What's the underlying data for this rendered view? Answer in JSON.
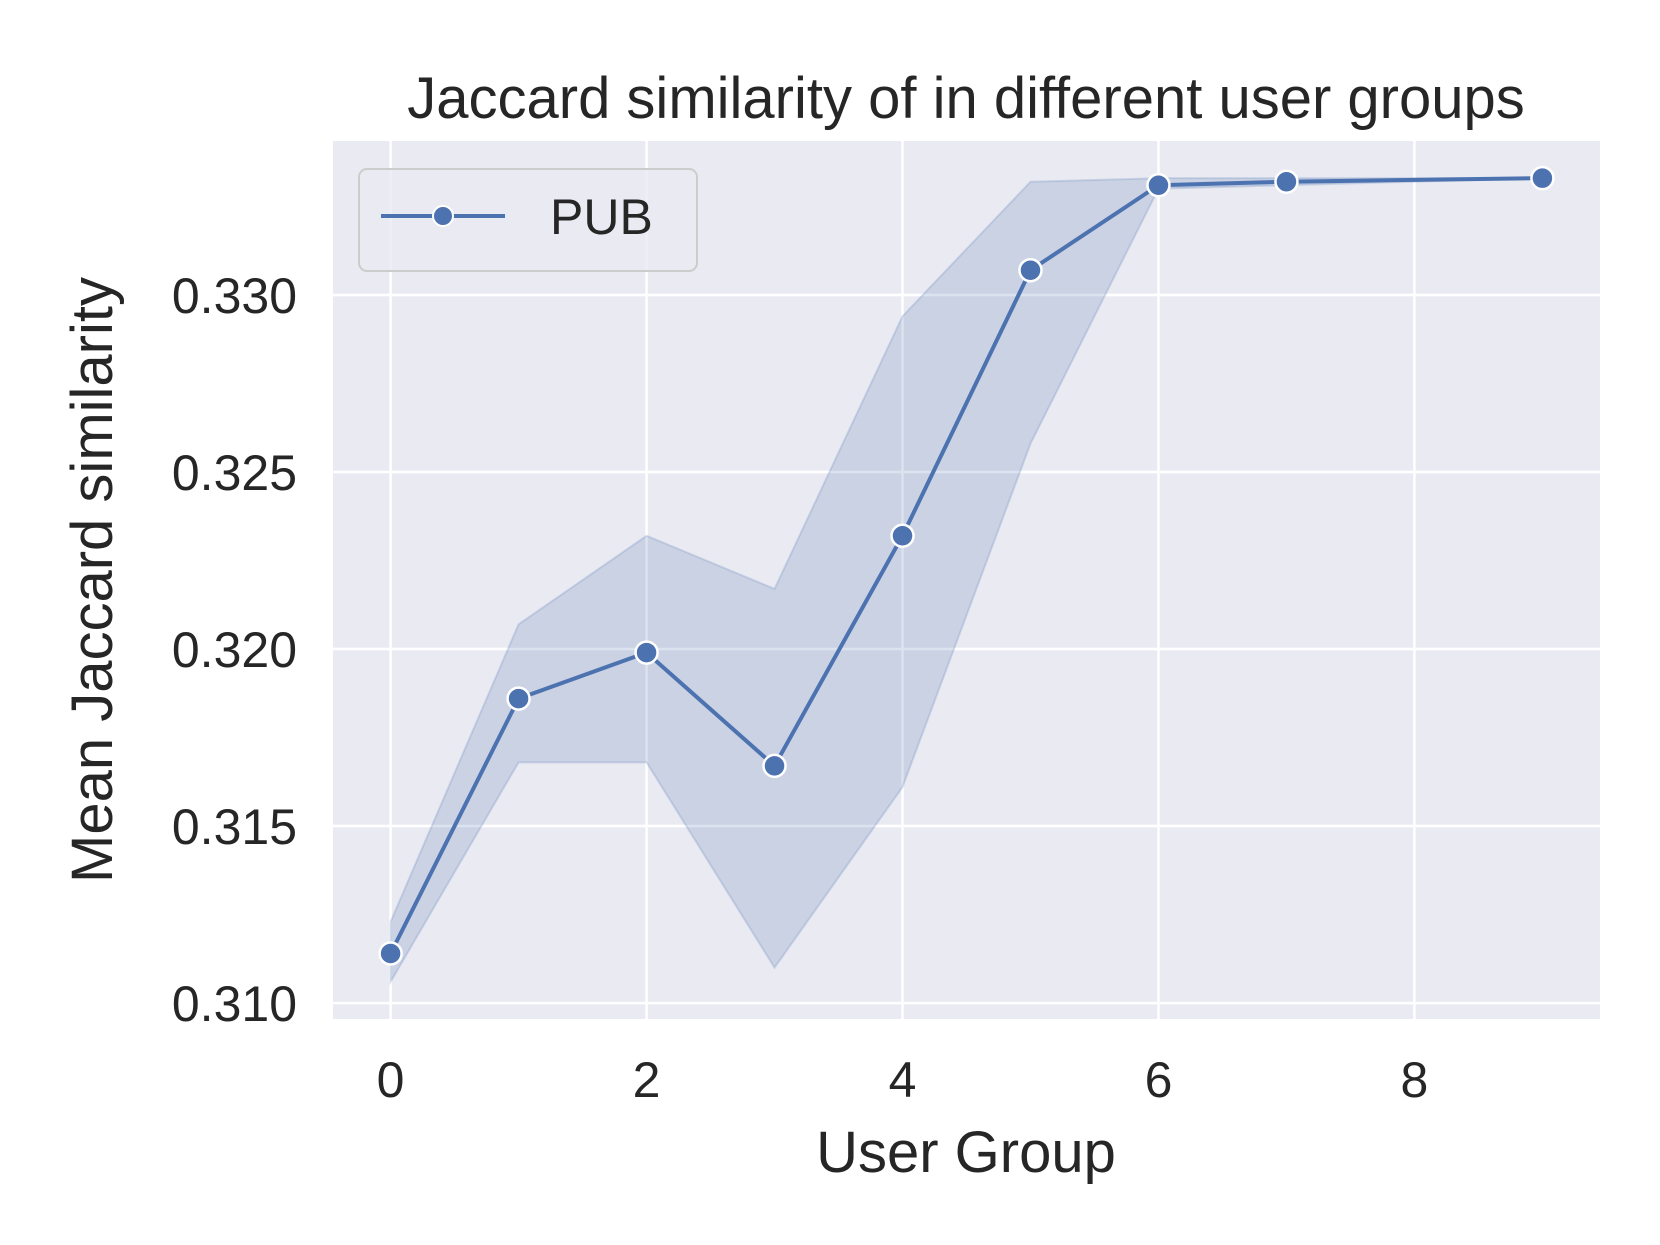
{
  "chart_data": {
    "type": "line",
    "title": "Jaccard similarity of in different user groups",
    "xlabel": "User Group",
    "ylabel": "Mean Jaccard similarity",
    "xlim": [
      -0.45,
      9.45
    ],
    "ylim": [
      0.30955,
      0.33435
    ],
    "xticks": [
      0,
      2,
      4,
      6,
      8
    ],
    "yticks": [
      0.31,
      0.315,
      0.32,
      0.325,
      0.33
    ],
    "xtick_labels": [
      "0",
      "2",
      "4",
      "6",
      "8"
    ],
    "ytick_labels": [
      "0.310",
      "0.315",
      "0.320",
      "0.325",
      "0.330"
    ],
    "grid": true,
    "legend_position": "top-left",
    "background_color": "#eaeaf2",
    "series": [
      {
        "name": "PUB",
        "color": "#4c72b0",
        "marker": "circle",
        "x": [
          0,
          1,
          2,
          3,
          4,
          5,
          6,
          7,
          9
        ],
        "y": [
          0.3114,
          0.3186,
          0.3199,
          0.3167,
          0.3232,
          0.3307,
          0.3331,
          0.3332,
          0.3333
        ],
        "ci_lower": [
          0.3106,
          0.3168,
          0.3168,
          0.311,
          0.3161,
          0.3258,
          0.333,
          0.3331,
          0.3333
        ],
        "ci_upper": [
          0.3123,
          0.3207,
          0.3232,
          0.3217,
          0.3294,
          0.3332,
          0.3333,
          0.3333,
          0.3333
        ]
      }
    ]
  }
}
